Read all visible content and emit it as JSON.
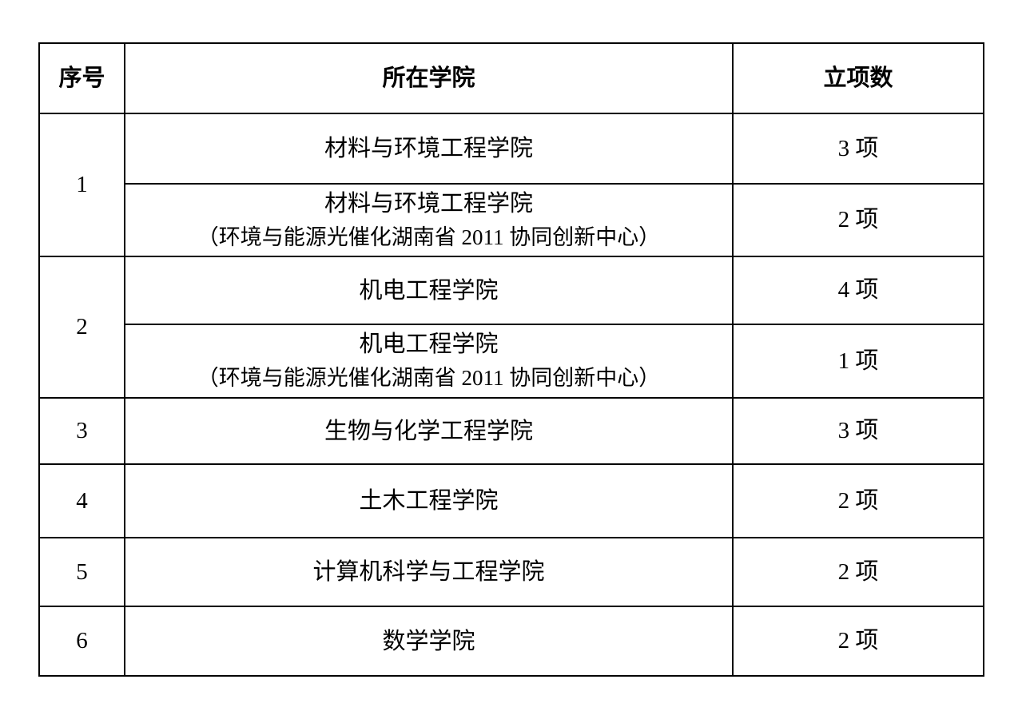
{
  "document": {
    "background_color": "#ffffff",
    "border_color": "#000000",
    "text_color": "#000000"
  },
  "table": {
    "columns": [
      {
        "label": "序号"
      },
      {
        "label": "所在学院"
      },
      {
        "label": "立项数"
      }
    ],
    "groups": [
      {
        "index": "1",
        "rows": [
          {
            "college": "材料与环境工程学院",
            "count": "3 项"
          },
          {
            "college": "材料与环境工程学院",
            "note": "（环境与能源光催化湖南省 2011 协同创新中心）",
            "count": "2 项"
          }
        ]
      },
      {
        "index": "2",
        "rows": [
          {
            "college": "机电工程学院",
            "count": "4 项"
          },
          {
            "college": "机电工程学院",
            "note": "（环境与能源光催化湖南省 2011 协同创新中心）",
            "count": "1 项"
          }
        ]
      },
      {
        "index": "3",
        "rows": [
          {
            "college": "生物与化学工程学院",
            "count": "3 项"
          }
        ]
      },
      {
        "index": "4",
        "rows": [
          {
            "college": "土木工程学院",
            "count": "2 项"
          }
        ]
      },
      {
        "index": "5",
        "rows": [
          {
            "college": "计算机科学与工程学院",
            "count": "2 项"
          }
        ]
      },
      {
        "index": "6",
        "rows": [
          {
            "college": "数学学院",
            "count": "2 项"
          }
        ]
      }
    ]
  }
}
